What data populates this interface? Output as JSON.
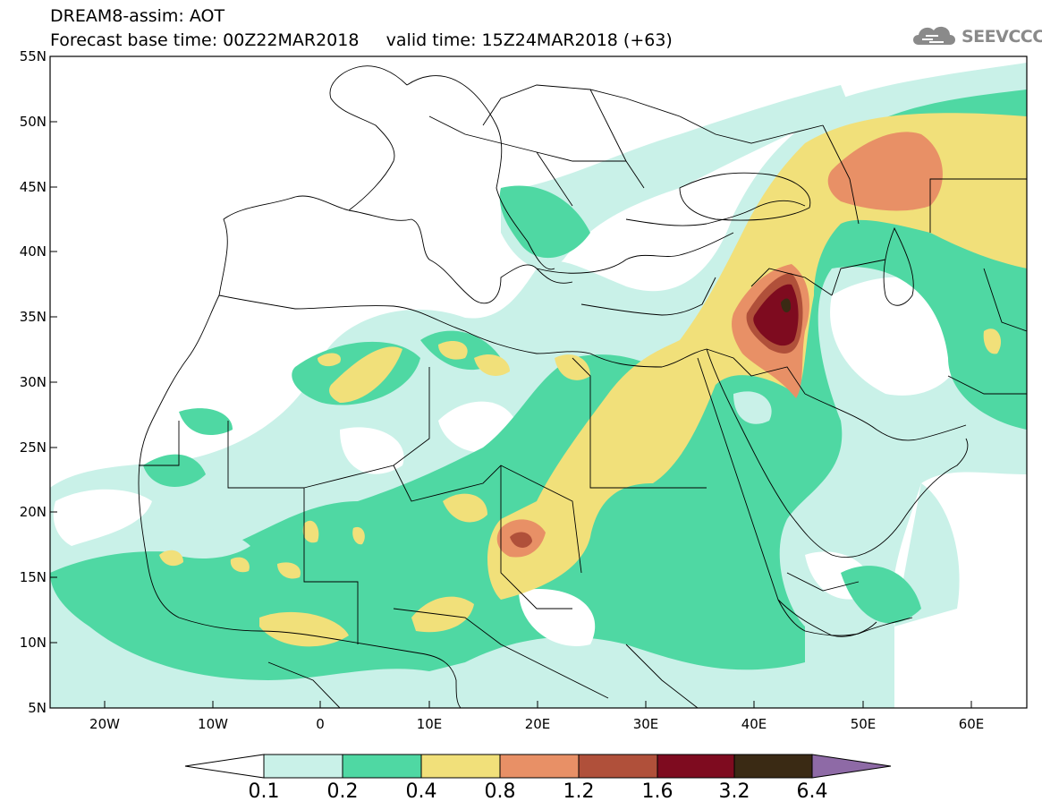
{
  "title": {
    "line1": "DREAM8-assim: AOT",
    "line2": "Forecast base time: 00Z22MAR2018     valid time: 15Z24MAR2018 (+63)"
  },
  "logo": {
    "text": "SEEVCCC",
    "icon": "cloud-logo-icon"
  },
  "axes": {
    "lat_labels": [
      "55N",
      "50N",
      "45N",
      "40N",
      "35N",
      "30N",
      "25N",
      "20N",
      "15N",
      "10N",
      "5N"
    ],
    "lon_labels": [
      "20W",
      "10W",
      "0",
      "10E",
      "20E",
      "30E",
      "40E",
      "50E",
      "60E"
    ]
  },
  "colorbar": {
    "labels": [
      "0.1",
      "0.2",
      "0.4",
      "0.8",
      "1.2",
      "1.6",
      "3.2",
      "6.4"
    ],
    "colors": [
      "#c9f1e8",
      "#4fd8a3",
      "#f1e07a",
      "#e89066",
      "#b0503a",
      "#7e0b1f",
      "#3a2a14",
      "#8e6aa6"
    ]
  },
  "chart_data": {
    "type": "heatmap",
    "variable": "AOT",
    "extent": {
      "lon": [
        -25,
        65
      ],
      "lat": [
        5,
        55
      ]
    },
    "levels": [
      0.1,
      0.2,
      0.4,
      0.8,
      1.2,
      1.6,
      3.2,
      6.4
    ]
  }
}
